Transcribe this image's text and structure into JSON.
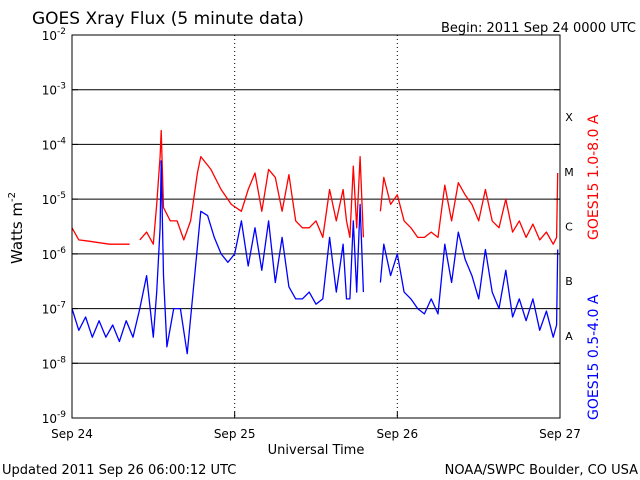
{
  "chart_data": {
    "type": "line",
    "title": "GOES Xray Flux (5 minute data)",
    "begin_label": "Begin:  2011 Sep 24 0000 UTC",
    "xlabel": "Universal Time",
    "ylabel_base": "Watts m",
    "ylabel_exp": "-2",
    "y_scale": "log",
    "ylim": [
      1e-09,
      0.01
    ],
    "y_ticks": [
      {
        "base": "10",
        "exp": "-2",
        "value": 0.01
      },
      {
        "base": "10",
        "exp": "-3",
        "value": 0.001
      },
      {
        "base": "10",
        "exp": "-4",
        "value": 0.0001
      },
      {
        "base": "10",
        "exp": "-5",
        "value": 1e-05
      },
      {
        "base": "10",
        "exp": "-6",
        "value": 1e-06
      },
      {
        "base": "10",
        "exp": "-7",
        "value": 1e-07
      },
      {
        "base": "10",
        "exp": "-8",
        "value": 1e-08
      },
      {
        "base": "10",
        "exp": "-9",
        "value": 1e-09
      }
    ],
    "x_axis": "time",
    "xlim": [
      "2011-09-24 00:00",
      "2011-09-27 00:00"
    ],
    "x_ticks": [
      {
        "label": "Sep 24",
        "time": "2011-09-24 00:00"
      },
      {
        "label": "Sep 25",
        "time": "2011-09-25 00:00"
      },
      {
        "label": "Sep 26",
        "time": "2011-09-26 00:00"
      },
      {
        "label": "Sep 27",
        "time": "2011-09-27 00:00"
      }
    ],
    "flare_classes": [
      {
        "label": "X",
        "value": 0.0001
      },
      {
        "label": "M",
        "value": 1e-05
      },
      {
        "label": "C",
        "value": 1e-06
      },
      {
        "label": "B",
        "value": 1e-07
      },
      {
        "label": "A",
        "value": 1e-08
      }
    ],
    "grid": true,
    "series": [
      {
        "name": "GOES15 1.0-8.0 A",
        "color": "#ff0000",
        "points": [
          [
            "2011-09-24 00:00",
            3e-06
          ],
          [
            "2011-09-24 01:00",
            1.8e-06
          ],
          [
            "2011-09-24 02:30",
            1.7e-06
          ],
          [
            "2011-09-24 04:00",
            1.6e-06
          ],
          [
            "2011-09-24 05:30",
            1.5e-06
          ],
          [
            "2011-09-24 07:00",
            1.5e-06
          ],
          [
            "2011-09-24 08:30",
            1.5e-06
          ],
          [
            "2011-09-24 09:00",
            null
          ],
          [
            "2011-09-24 10:00",
            1.8e-06
          ],
          [
            "2011-09-24 11:00",
            2.5e-06
          ],
          [
            "2011-09-24 12:00",
            1.5e-06
          ],
          [
            "2011-09-24 12:30",
            8e-06
          ],
          [
            "2011-09-24 13:00",
            6e-05
          ],
          [
            "2011-09-24 13:10",
            0.00018
          ],
          [
            "2011-09-24 13:30",
            7e-06
          ],
          [
            "2011-09-24 14:30",
            4e-06
          ],
          [
            "2011-09-24 15:30",
            4e-06
          ],
          [
            "2011-09-24 16:30",
            1.8e-06
          ],
          [
            "2011-09-24 17:30",
            4e-06
          ],
          [
            "2011-09-24 18:30",
            3e-05
          ],
          [
            "2011-09-24 19:00",
            6e-05
          ],
          [
            "2011-09-24 20:30",
            3.5e-05
          ],
          [
            "2011-09-24 22:00",
            1.5e-05
          ],
          [
            "2011-09-24 23:30",
            8e-06
          ],
          [
            "2011-09-25 01:00",
            6e-06
          ],
          [
            "2011-09-25 02:00",
            1.5e-05
          ],
          [
            "2011-09-25 03:00",
            3e-05
          ],
          [
            "2011-09-25 04:00",
            6e-06
          ],
          [
            "2011-09-25 05:00",
            3.5e-05
          ],
          [
            "2011-09-25 06:00",
            2.5e-05
          ],
          [
            "2011-09-25 07:00",
            6e-06
          ],
          [
            "2011-09-25 08:00",
            2.8e-05
          ],
          [
            "2011-09-25 09:00",
            4e-06
          ],
          [
            "2011-09-25 10:00",
            3e-06
          ],
          [
            "2011-09-25 11:00",
            3e-06
          ],
          [
            "2011-09-25 12:00",
            4e-06
          ],
          [
            "2011-09-25 13:00",
            2e-06
          ],
          [
            "2011-09-25 14:00",
            1.5e-05
          ],
          [
            "2011-09-25 15:00",
            4e-06
          ],
          [
            "2011-09-25 16:00",
            1.5e-05
          ],
          [
            "2011-09-25 16:30",
            4e-06
          ],
          [
            "2011-09-25 17:00",
            2e-06
          ],
          [
            "2011-09-25 17:30",
            4e-05
          ],
          [
            "2011-09-25 18:00",
            3e-06
          ],
          [
            "2011-09-25 18:30",
            6e-05
          ],
          [
            "2011-09-25 19:00",
            2e-06
          ],
          [
            "2011-09-25 19:30",
            null
          ],
          [
            "2011-09-25 21:30",
            6e-06
          ],
          [
            "2011-09-25 22:00",
            2.5e-05
          ],
          [
            "2011-09-25 23:00",
            8e-06
          ],
          [
            "2011-09-26 00:00",
            1.2e-05
          ],
          [
            "2011-09-26 01:00",
            4e-06
          ],
          [
            "2011-09-26 02:00",
            3e-06
          ],
          [
            "2011-09-26 03:00",
            2e-06
          ],
          [
            "2011-09-26 04:00",
            2e-06
          ],
          [
            "2011-09-26 05:00",
            2.5e-06
          ],
          [
            "2011-09-26 06:00",
            2e-06
          ],
          [
            "2011-09-26 07:00",
            1.8e-05
          ],
          [
            "2011-09-26 08:00",
            4e-06
          ],
          [
            "2011-09-26 09:00",
            2e-05
          ],
          [
            "2011-09-26 10:00",
            1.2e-05
          ],
          [
            "2011-09-26 11:00",
            8e-06
          ],
          [
            "2011-09-26 12:00",
            4e-06
          ],
          [
            "2011-09-26 13:00",
            1.5e-05
          ],
          [
            "2011-09-26 14:00",
            4e-06
          ],
          [
            "2011-09-26 15:00",
            3e-06
          ],
          [
            "2011-09-26 16:00",
            1e-05
          ],
          [
            "2011-09-26 17:00",
            2.5e-06
          ],
          [
            "2011-09-26 18:00",
            4e-06
          ],
          [
            "2011-09-26 19:00",
            2e-06
          ],
          [
            "2011-09-26 20:00",
            3.5e-06
          ],
          [
            "2011-09-26 21:00",
            1.8e-06
          ],
          [
            "2011-09-26 22:00",
            2.5e-06
          ],
          [
            "2011-09-26 23:00",
            1.5e-06
          ],
          [
            "2011-09-26 23:30",
            2e-06
          ],
          [
            "2011-09-26 23:40",
            3e-05
          ],
          [
            "2011-09-26 23:45",
            null
          ]
        ]
      },
      {
        "name": "GOES15 0.5-4.0 A",
        "color": "#0000ff",
        "points": [
          [
            "2011-09-24 00:00",
            1e-07
          ],
          [
            "2011-09-24 01:00",
            4e-08
          ],
          [
            "2011-09-24 02:00",
            7e-08
          ],
          [
            "2011-09-24 03:00",
            3e-08
          ],
          [
            "2011-09-24 04:00",
            6e-08
          ],
          [
            "2011-09-24 05:00",
            3e-08
          ],
          [
            "2011-09-24 06:00",
            5e-08
          ],
          [
            "2011-09-24 07:00",
            2.5e-08
          ],
          [
            "2011-09-24 08:00",
            6e-08
          ],
          [
            "2011-09-24 09:00",
            3e-08
          ],
          [
            "2011-09-24 10:00",
            1e-07
          ],
          [
            "2011-09-24 11:00",
            4e-07
          ],
          [
            "2011-09-24 12:00",
            3e-08
          ],
          [
            "2011-09-24 12:30",
            2e-07
          ],
          [
            "2011-09-24 13:00",
            3e-06
          ],
          [
            "2011-09-24 13:10",
            5e-05
          ],
          [
            "2011-09-24 13:30",
            4e-07
          ],
          [
            "2011-09-24 14:00",
            2e-08
          ],
          [
            "2011-09-24 15:00",
            1e-07
          ],
          [
            "2011-09-24 16:00",
            1e-07
          ],
          [
            "2011-09-24 17:00",
            1.5e-08
          ],
          [
            "2011-09-24 18:00",
            3e-07
          ],
          [
            "2011-09-24 19:00",
            6e-06
          ],
          [
            "2011-09-24 20:00",
            5e-06
          ],
          [
            "2011-09-24 21:00",
            2e-06
          ],
          [
            "2011-09-24 22:00",
            1e-06
          ],
          [
            "2011-09-24 23:00",
            7e-07
          ],
          [
            "2011-09-25 00:00",
            1e-06
          ],
          [
            "2011-09-25 01:00",
            4e-06
          ],
          [
            "2011-09-25 02:00",
            6e-07
          ],
          [
            "2011-09-25 03:00",
            3e-06
          ],
          [
            "2011-09-25 04:00",
            5e-07
          ],
          [
            "2011-09-25 05:00",
            4e-06
          ],
          [
            "2011-09-25 06:00",
            3e-07
          ],
          [
            "2011-09-25 07:00",
            2e-06
          ],
          [
            "2011-09-25 08:00",
            2.5e-07
          ],
          [
            "2011-09-25 09:00",
            1.5e-07
          ],
          [
            "2011-09-25 10:00",
            1.5e-07
          ],
          [
            "2011-09-25 11:00",
            2e-07
          ],
          [
            "2011-09-25 12:00",
            1.2e-07
          ],
          [
            "2011-09-25 13:00",
            1.5e-07
          ],
          [
            "2011-09-25 14:00",
            2e-06
          ],
          [
            "2011-09-25 15:00",
            2e-07
          ],
          [
            "2011-09-25 16:00",
            1.5e-06
          ],
          [
            "2011-09-25 16:30",
            1.5e-07
          ],
          [
            "2011-09-25 17:00",
            1.5e-07
          ],
          [
            "2011-09-25 17:30",
            4e-06
          ],
          [
            "2011-09-25 18:00",
            2e-07
          ],
          [
            "2011-09-25 18:30",
            8e-06
          ],
          [
            "2011-09-25 19:00",
            2e-07
          ],
          [
            "2011-09-25 19:30",
            null
          ],
          [
            "2011-09-25 21:30",
            3e-07
          ],
          [
            "2011-09-25 22:00",
            1.5e-06
          ],
          [
            "2011-09-25 23:00",
            4e-07
          ],
          [
            "2011-09-26 00:00",
            1e-06
          ],
          [
            "2011-09-26 01:00",
            2e-07
          ],
          [
            "2011-09-26 02:00",
            1.5e-07
          ],
          [
            "2011-09-26 03:00",
            1e-07
          ],
          [
            "2011-09-26 04:00",
            8e-08
          ],
          [
            "2011-09-26 05:00",
            1.5e-07
          ],
          [
            "2011-09-26 06:00",
            8e-08
          ],
          [
            "2011-09-26 07:00",
            1.5e-06
          ],
          [
            "2011-09-26 08:00",
            3e-07
          ],
          [
            "2011-09-26 09:00",
            2.5e-06
          ],
          [
            "2011-09-26 10:00",
            8e-07
          ],
          [
            "2011-09-26 11:00",
            4e-07
          ],
          [
            "2011-09-26 12:00",
            1.5e-07
          ],
          [
            "2011-09-26 13:00",
            1.2e-06
          ],
          [
            "2011-09-26 14:00",
            2e-07
          ],
          [
            "2011-09-26 15:00",
            1e-07
          ],
          [
            "2011-09-26 16:00",
            5e-07
          ],
          [
            "2011-09-26 17:00",
            7e-08
          ],
          [
            "2011-09-26 18:00",
            1.5e-07
          ],
          [
            "2011-09-26 19:00",
            6e-08
          ],
          [
            "2011-09-26 20:00",
            1.5e-07
          ],
          [
            "2011-09-26 21:00",
            4e-08
          ],
          [
            "2011-09-26 22:00",
            9e-08
          ],
          [
            "2011-09-26 23:00",
            3e-08
          ],
          [
            "2011-09-26 23:30",
            5e-08
          ],
          [
            "2011-09-26 23:40",
            1.2e-06
          ],
          [
            "2011-09-26 23:45",
            null
          ]
        ]
      }
    ]
  },
  "footer": {
    "updated": "Updated 2011 Sep 26 06:00:12 UTC",
    "source": "NOAA/SWPC Boulder, CO USA"
  }
}
